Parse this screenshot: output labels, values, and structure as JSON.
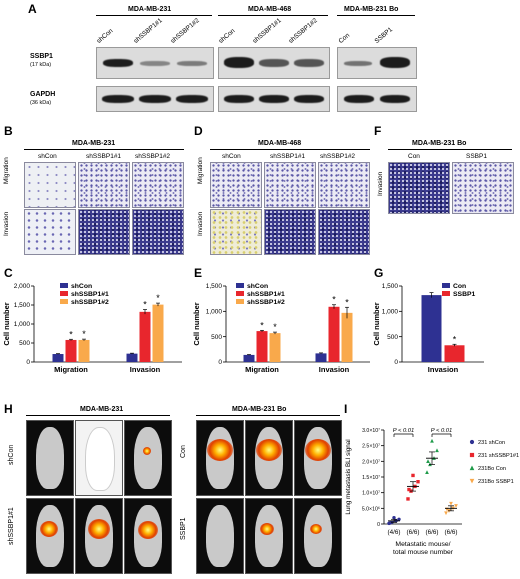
{
  "panels": {
    "A": {
      "letter": "A",
      "groups": [
        {
          "title": "MDA-MB-231",
          "lanes": [
            "shCon",
            "shSSBP1#1",
            "shSSBP1#2"
          ]
        },
        {
          "title": "MDA-MB-468",
          "lanes": [
            "shCon",
            "shSSBP1#1",
            "shSSBP1#2"
          ]
        },
        {
          "title": "MDA-MB-231 Bo",
          "lanes": [
            "Con",
            "SSBP1"
          ]
        }
      ],
      "rows": [
        {
          "label": "SSBP1",
          "size": "(17 kDa)"
        },
        {
          "label": "GAPDH",
          "size": "(36 kDa)"
        }
      ]
    },
    "B": {
      "letter": "B",
      "title": "MDA-MB-231",
      "cols": [
        "shCon",
        "shSSBP1#1",
        "shSSBP1#2"
      ],
      "rows": [
        "Migration",
        "Invasion"
      ]
    },
    "D": {
      "letter": "D",
      "title": "MDA-MB-468",
      "cols": [
        "shCon",
        "shSSBP1#1",
        "shSSBP1#2"
      ],
      "rows": [
        "Migration",
        "Invasion"
      ]
    },
    "F": {
      "letter": "F",
      "title": "MDA-MB-231 Bo",
      "cols": [
        "Con",
        "SSBP1"
      ],
      "rows": [
        "Invasion"
      ]
    },
    "H": {
      "letter": "H",
      "titles": [
        "MDA-MB-231",
        "MDA-MB-231 Bo"
      ],
      "rows_left": [
        "shCon",
        "shSSBP1#1"
      ],
      "rows_right": [
        "Con",
        "SSBP1"
      ]
    }
  },
  "colors": {
    "navy": "#2e3192",
    "red": "#e8262d",
    "orange": "#f9a94b",
    "green": "#1f9b4a"
  },
  "chart_data": [
    {
      "panel": "C",
      "type": "bar",
      "categories": [
        "Migration",
        "Invasion"
      ],
      "ylabel": "Cell number",
      "ylim": [
        0,
        2000
      ],
      "yticks": [
        "0",
        "500",
        "1,000",
        "1,500",
        "2,000"
      ],
      "series": [
        {
          "name": "shCon",
          "values": [
            210,
            220
          ],
          "errors": [
            10,
            12
          ]
        },
        {
          "name": "shSSBP1#1",
          "values": [
            580,
            1320
          ],
          "errors": [
            18,
            60
          ]
        },
        {
          "name": "shSSBP1#2",
          "values": [
            580,
            1510
          ],
          "errors": [
            22,
            40
          ]
        }
      ],
      "star": "*",
      "legend": "top-left"
    },
    {
      "panel": "E",
      "type": "bar",
      "categories": [
        "Migration",
        "Invasion"
      ],
      "ylabel": "Cell number",
      "ylim": [
        0,
        1500
      ],
      "yticks": [
        "0",
        "500",
        "1,000",
        "1,500"
      ],
      "series": [
        {
          "name": "shCon",
          "values": [
            140,
            170
          ],
          "errors": [
            8,
            10
          ]
        },
        {
          "name": "shSSBP1#1",
          "values": [
            610,
            1090
          ],
          "errors": [
            15,
            40
          ]
        },
        {
          "name": "shSSBP1#2",
          "values": [
            570,
            970
          ],
          "errors": [
            20,
            110
          ]
        }
      ],
      "star": "*",
      "legend": "top-left"
    },
    {
      "panel": "G",
      "type": "bar",
      "categories": [
        "Invasion"
      ],
      "ylabel": "Cell number",
      "ylim": [
        0,
        1500
      ],
      "yticks": [
        "0",
        "500",
        "1,000",
        "1,500"
      ],
      "series": [
        {
          "name": "Con",
          "values": [
            1320
          ],
          "errors": [
            50
          ]
        },
        {
          "name": "SSBP1",
          "values": [
            330
          ],
          "errors": [
            20
          ]
        }
      ],
      "star": "*",
      "legend": "top-right"
    },
    {
      "panel": "I",
      "type": "scatter",
      "ylabel": "Lung metastasis BLI signal",
      "xlabel": "Metastatic mouse/ total mouse number",
      "ylim": [
        0,
        30000000
      ],
      "yticks": [
        "0",
        "5.0×10⁶",
        "1.0×10⁷",
        "1.5×10⁷",
        "2.0×10⁷",
        "2.5×10⁷",
        "3.0×10⁷"
      ],
      "xticks": [
        "(4/6)",
        "(6/6)",
        "(6/6)",
        "(6/6)"
      ],
      "pvalues": [
        "P < 0.01",
        "P < 0.01"
      ],
      "series": [
        {
          "name": "231 shCon",
          "marker": "circle",
          "mean": 1000000,
          "sem": 500000,
          "values": [
            200000,
            600000,
            1000000,
            1500000,
            2000000,
            300000
          ]
        },
        {
          "name": "231 shSSBP1#1",
          "marker": "square",
          "mean": 12000000,
          "sem": 1500000,
          "values": [
            8000000,
            10500000,
            12000000,
            13500000,
            15500000,
            11000000
          ]
        },
        {
          "name": "231Bo Con",
          "marker": "triangle-up",
          "mean": 21000000,
          "sem": 2000000,
          "values": [
            16500000,
            19000000,
            21000000,
            23500000,
            26500000,
            20000000
          ]
        },
        {
          "name": "231Bo SSBP1",
          "marker": "triangle-down",
          "mean": 5000000,
          "sem": 800000,
          "values": [
            3500000,
            4200000,
            5000000,
            5800000,
            6500000,
            4700000
          ]
        }
      ],
      "legend": "right"
    }
  ]
}
